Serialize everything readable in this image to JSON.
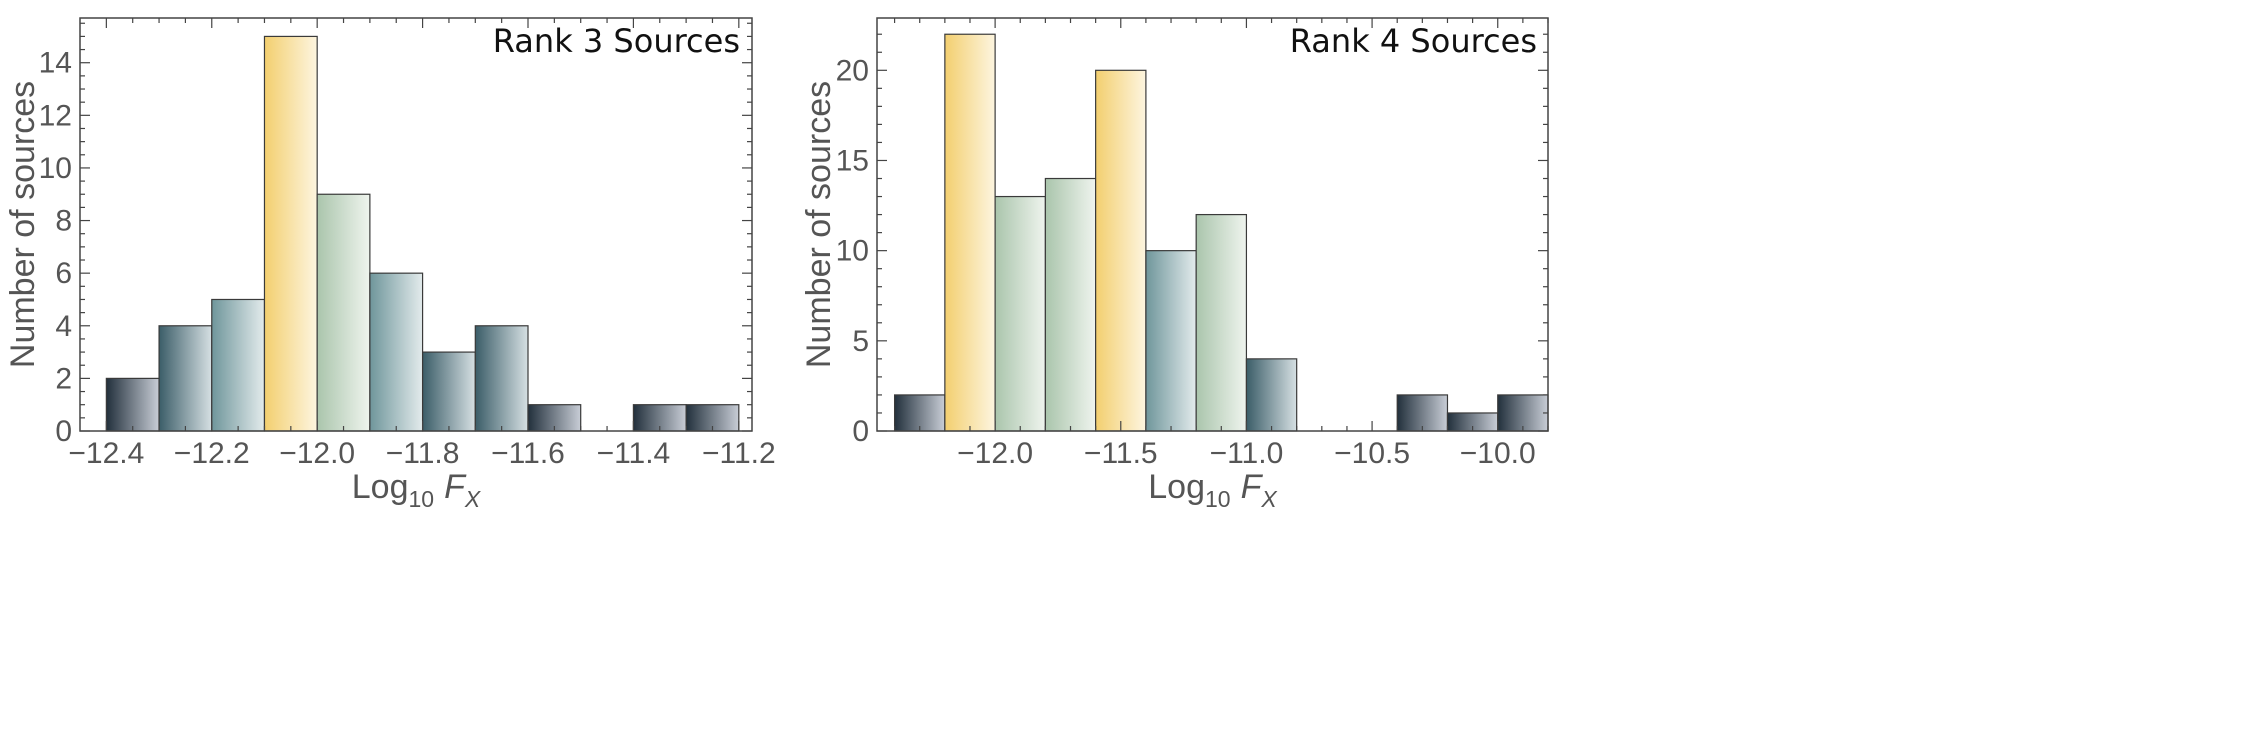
{
  "chart_data": [
    {
      "type": "bar",
      "title": "Rank 3 Sources",
      "xlabel": {
        "main": "Log",
        "sub": "10",
        "var": "F",
        "varsub": "X"
      },
      "ylabel": "Number of sources",
      "xlim": [
        -12.45,
        -11.175
      ],
      "ylim": [
        0,
        15.7
      ],
      "bin_width": 0.1,
      "xticks": [
        -12.4,
        -12.2,
        -12.0,
        -11.8,
        -11.6,
        -11.4,
        -11.2
      ],
      "xtick_labels": [
        "−12.4",
        "−12.2",
        "−12.0",
        "−11.8",
        "−11.6",
        "−11.4",
        "−11.2"
      ],
      "yticks": [
        0,
        2,
        4,
        6,
        8,
        10,
        12,
        14
      ],
      "ytick_labels": [
        "0",
        "2",
        "4",
        "6",
        "8",
        "10",
        "12",
        "14"
      ],
      "bins": [
        {
          "x": -12.4,
          "value": 2
        },
        {
          "x": -12.3,
          "value": 4
        },
        {
          "x": -12.2,
          "value": 5
        },
        {
          "x": -12.1,
          "value": 15
        },
        {
          "x": -12.0,
          "value": 9
        },
        {
          "x": -11.9,
          "value": 6
        },
        {
          "x": -11.8,
          "value": 3
        },
        {
          "x": -11.7,
          "value": 4
        },
        {
          "x": -11.6,
          "value": 1
        },
        {
          "x": -11.5,
          "value": 0
        },
        {
          "x": -11.4,
          "value": 1
        },
        {
          "x": -11.3,
          "value": 1
        }
      ],
      "grid": false,
      "title_position": "top-right"
    },
    {
      "type": "bar",
      "title": "Rank 4 Sources",
      "xlabel": {
        "main": "Log",
        "sub": "10",
        "var": "F",
        "varsub": "X"
      },
      "ylabel": "Number of sources",
      "xlim": [
        -12.47,
        -9.8
      ],
      "ylim": [
        0,
        22.9
      ],
      "bin_width": 0.2,
      "xticks": [
        -12.0,
        -11.5,
        -11.0,
        -10.5,
        -10.0
      ],
      "xtick_labels": [
        "−12.0",
        "−11.5",
        "−11.0",
        "−10.5",
        "−10.0"
      ],
      "yticks": [
        0,
        5,
        10,
        15,
        20
      ],
      "ytick_labels": [
        "0",
        "5",
        "10",
        "15",
        "20"
      ],
      "bins": [
        {
          "x": -12.4,
          "value": 2
        },
        {
          "x": -12.2,
          "value": 22
        },
        {
          "x": -12.0,
          "value": 13
        },
        {
          "x": -11.8,
          "value": 14
        },
        {
          "x": -11.6,
          "value": 20
        },
        {
          "x": -11.4,
          "value": 10
        },
        {
          "x": -11.2,
          "value": 12
        },
        {
          "x": -11.0,
          "value": 4
        },
        {
          "x": -10.8,
          "value": 0
        },
        {
          "x": -10.6,
          "value": 0
        },
        {
          "x": -10.4,
          "value": 2
        },
        {
          "x": -10.2,
          "value": 1
        },
        {
          "x": -10.0,
          "value": 2
        }
      ],
      "grid": false,
      "title_position": "top-right"
    }
  ],
  "colors": {
    "frame": "#444444",
    "tick_text": "#555555",
    "bar_stroke": "#3a3a3a",
    "gradient_dark": [
      "#22303c",
      "#c8cdd6"
    ],
    "gradient_teal_dark": [
      "#3b5d68",
      "#d6e0e3"
    ],
    "gradient_teal": [
      "#6f969b",
      "#e3ebec"
    ],
    "gradient_green": [
      "#aac5ac",
      "#eff4ee"
    ],
    "gradient_gold": [
      "#f3cf6f",
      "#fdf5e0"
    ]
  }
}
